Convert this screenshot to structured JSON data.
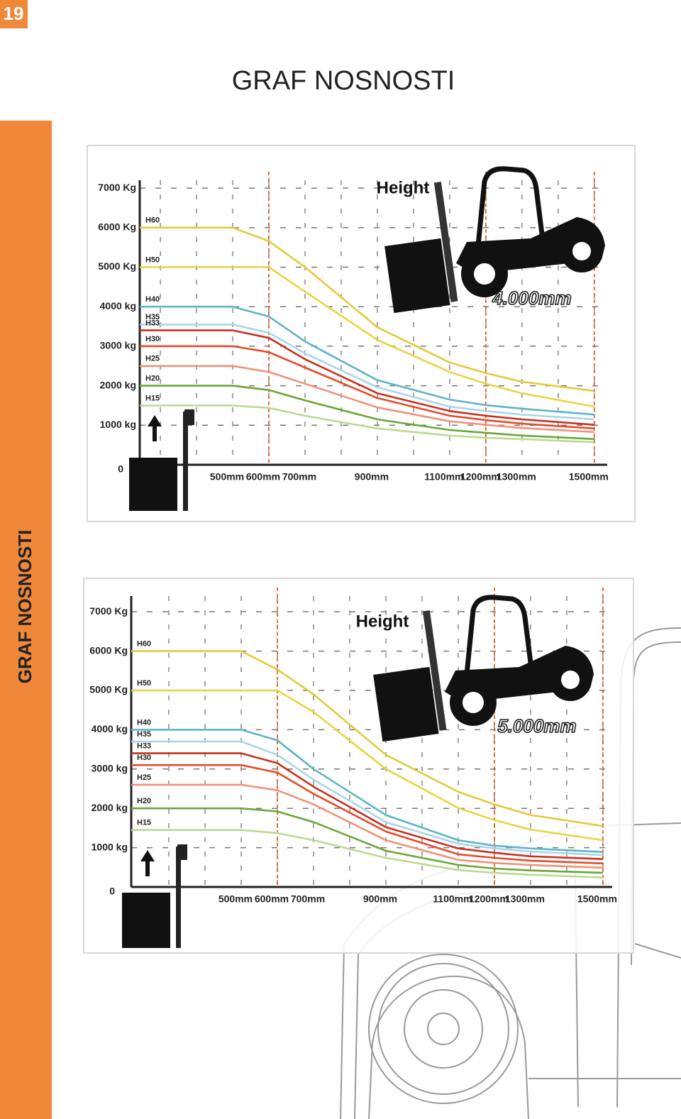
{
  "page_number": "19",
  "title": "GRAF NOSNOSTI",
  "side_title": "GRAF NOSNOSTI",
  "chart_data": [
    {
      "type": "line",
      "annotations": [
        "Height",
        "4.000mm"
      ],
      "x": [
        243,
        500,
        600,
        700,
        900,
        1100,
        1200,
        1300,
        1500
      ],
      "xlim": [
        243,
        1520
      ],
      "xticks": [
        {
          "value": 500,
          "label": "500mm"
        },
        {
          "value": 600,
          "label": "600mm"
        },
        {
          "value": 700,
          "label": "700mm"
        },
        {
          "value": 900,
          "label": "900mm"
        },
        {
          "value": 1100,
          "label": "1100mm"
        },
        {
          "value": 1200,
          "label": "1200mm"
        },
        {
          "value": 1300,
          "label": "1300mm"
        },
        {
          "value": 1500,
          "label": "1500mm"
        }
      ],
      "xgrid": [
        300,
        400,
        500,
        600,
        700,
        800,
        900,
        1000,
        1100,
        1200,
        1300,
        1400,
        1500
      ],
      "reference_lines": [
        600,
        1200,
        1500
      ],
      "ylim": [
        0,
        7200
      ],
      "yticks": [
        0,
        {
          "value": 1000,
          "label": "1000 kg"
        },
        {
          "value": 2000,
          "label": "2000 kg"
        },
        {
          "value": 3000,
          "label": "3000 kg"
        },
        {
          "value": 4000,
          "label": "4000 kg"
        },
        {
          "value": 5000,
          "label": "5000 Kg"
        },
        {
          "value": 6000,
          "label": "6000 Kg"
        },
        {
          "value": 7000,
          "label": "7000 Kg"
        }
      ],
      "grid": true,
      "series": [
        {
          "name": "H60",
          "color": "#e6c93a",
          "values": [
            6000,
            6000,
            5660,
            5000,
            3480,
            2590,
            2320,
            2100,
            1870
          ]
        },
        {
          "name": "H50",
          "color": "#e6d640",
          "values": [
            5000,
            5000,
            5000,
            4380,
            3160,
            2350,
            2050,
            1810,
            1470
          ]
        },
        {
          "name": "H40",
          "color": "#5db5c6",
          "values": [
            4000,
            4000,
            3750,
            3120,
            2140,
            1650,
            1510,
            1420,
            1270
          ]
        },
        {
          "name": "H35",
          "color": "#a9d6e6",
          "values": [
            3550,
            3550,
            3340,
            2820,
            1960,
            1470,
            1360,
            1270,
            1150
          ]
        },
        {
          "name": "H33",
          "color": "#c9301f",
          "values": [
            3400,
            3400,
            3210,
            2670,
            1810,
            1360,
            1240,
            1150,
            1010
          ]
        },
        {
          "name": "H30",
          "color": "#e24c2b",
          "values": [
            3000,
            3000,
            2850,
            2460,
            1690,
            1240,
            1130,
            1040,
            920
          ]
        },
        {
          "name": "H25",
          "color": "#f0917a",
          "values": [
            2500,
            2500,
            2350,
            2050,
            1450,
            1100,
            1010,
            930,
            830
          ]
        },
        {
          "name": "H20",
          "color": "#6aa63a",
          "values": [
            2000,
            2000,
            1890,
            1630,
            1150,
            880,
            810,
            740,
            650
          ]
        },
        {
          "name": "H15",
          "color": "#bcd992",
          "values": [
            1500,
            1500,
            1440,
            1240,
            920,
            740,
            680,
            650,
            570
          ]
        }
      ]
    },
    {
      "type": "line",
      "annotations": [
        "Height",
        "5.000mm"
      ],
      "x": [
        196,
        500,
        600,
        700,
        900,
        1100,
        1200,
        1300,
        1500
      ],
      "xlim": [
        196,
        1510
      ],
      "xticks": [
        {
          "value": 500,
          "label": "500mm"
        },
        {
          "value": 600,
          "label": "600mm"
        },
        {
          "value": 700,
          "label": "700mm"
        },
        {
          "value": 900,
          "label": "900mm"
        },
        {
          "value": 1100,
          "label": "1100mm"
        },
        {
          "value": 1200,
          "label": "1200mm"
        },
        {
          "value": 1300,
          "label": "1300mm"
        },
        {
          "value": 1500,
          "label": "1500mm"
        }
      ],
      "xgrid": [
        300,
        400,
        500,
        600,
        700,
        800,
        900,
        1000,
        1100,
        1200,
        1300,
        1400,
        1500
      ],
      "reference_lines": [
        600,
        1200,
        1500
      ],
      "ylim": [
        0,
        7400
      ],
      "yticks": [
        0,
        {
          "value": 1000,
          "label": "1000 kg"
        },
        {
          "value": 2000,
          "label": "2000 kg"
        },
        {
          "value": 3000,
          "label": "3000 kg"
        },
        {
          "value": 4000,
          "label": "4000 kg"
        },
        {
          "value": 5000,
          "label": "5000 Kg"
        },
        {
          "value": 6000,
          "label": "6000 Kg"
        },
        {
          "value": 7000,
          "label": "7000 Kg"
        }
      ],
      "grid": true,
      "series": [
        {
          "name": "H60",
          "color": "#e6c93a",
          "values": [
            6000,
            6000,
            5530,
            4900,
            3360,
            2420,
            2100,
            1830,
            1550
          ]
        },
        {
          "name": "H50",
          "color": "#e6d640",
          "values": [
            5000,
            5000,
            5000,
            4450,
            3000,
            2010,
            1700,
            1460,
            1190
          ]
        },
        {
          "name": "H40",
          "color": "#5db5c6",
          "values": [
            4000,
            4000,
            3730,
            3000,
            1830,
            1190,
            1050,
            980,
            890
          ]
        },
        {
          "name": "H35",
          "color": "#a9d6e6",
          "values": [
            3700,
            3700,
            3360,
            2730,
            1650,
            1100,
            980,
            900,
            810
          ]
        },
        {
          "name": "H33",
          "color": "#c9301f",
          "values": [
            3400,
            3400,
            3150,
            2550,
            1520,
            980,
            870,
            780,
            710
          ]
        },
        {
          "name": "H30",
          "color": "#e24c2b",
          "values": [
            3100,
            3100,
            2910,
            2370,
            1410,
            830,
            740,
            670,
            600
          ]
        },
        {
          "name": "H25",
          "color": "#f0917a",
          "values": [
            2600,
            2600,
            2460,
            2100,
            1190,
            690,
            610,
            560,
            490
          ]
        },
        {
          "name": "H20",
          "color": "#6aa63a",
          "values": [
            2000,
            2000,
            1920,
            1650,
            920,
            560,
            470,
            420,
            360
          ]
        },
        {
          "name": "H15",
          "color": "#bcd992",
          "values": [
            1450,
            1450,
            1370,
            1190,
            740,
            430,
            360,
            310,
            240
          ]
        }
      ]
    }
  ]
}
